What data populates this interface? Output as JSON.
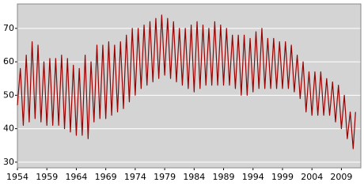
{
  "chart_data": {
    "type": "line",
    "color": "#990000",
    "background": "#d4d4d4",
    "grid": true,
    "xlim": [
      1954,
      2012.3
    ],
    "ylim": [
      28.3,
      77.3
    ],
    "xticks": [
      1954,
      1959,
      1964,
      1969,
      1974,
      1979,
      1984,
      1989,
      1994,
      1999,
      2004,
      2009
    ],
    "yticks": [
      30,
      40,
      50,
      60,
      70
    ],
    "x": [
      1954,
      1954.5,
      1955,
      1955.5,
      1956,
      1956.5,
      1957,
      1957.5,
      1958,
      1958.5,
      1959,
      1959.5,
      1960,
      1960.5,
      1961,
      1961.5,
      1962,
      1962.5,
      1963,
      1963.5,
      1964,
      1964.5,
      1965,
      1965.5,
      1966,
      1966.5,
      1967,
      1967.5,
      1968,
      1968.5,
      1969,
      1969.5,
      1970,
      1970.5,
      1971,
      1971.5,
      1972,
      1972.5,
      1973,
      1973.5,
      1974,
      1974.5,
      1975,
      1975.5,
      1976,
      1976.5,
      1977,
      1977.5,
      1978,
      1978.5,
      1979,
      1979.5,
      1980,
      1980.5,
      1981,
      1981.5,
      1982,
      1982.5,
      1983,
      1983.5,
      1984,
      1984.5,
      1985,
      1985.5,
      1986,
      1986.5,
      1987,
      1987.5,
      1988,
      1988.5,
      1989,
      1989.5,
      1990,
      1990.5,
      1991,
      1991.5,
      1992,
      1992.5,
      1993,
      1993.5,
      1994,
      1994.5,
      1995,
      1995.5,
      1996,
      1996.5,
      1997,
      1997.5,
      1998,
      1998.5,
      1999,
      1999.5,
      2000,
      2000.5,
      2001,
      2001.5,
      2002,
      2002.5,
      2003,
      2003.5,
      2004,
      2004.5,
      2005,
      2005.5,
      2006,
      2006.5,
      2007,
      2007.5,
      2008,
      2008.5,
      2009,
      2009.5,
      2010,
      2010.5,
      2011,
      2011.4
    ],
    "values": [
      47,
      58,
      41,
      62,
      42,
      66,
      43,
      65,
      42,
      60,
      41,
      61,
      41,
      61,
      41,
      62,
      40,
      61,
      39,
      59,
      38,
      58,
      38,
      62,
      37,
      60,
      42,
      65,
      43,
      65,
      43,
      66,
      44,
      65,
      45,
      66,
      46,
      68,
      48,
      70,
      50,
      70,
      52,
      71,
      53,
      72,
      54,
      73,
      55,
      74,
      56,
      73,
      55,
      72,
      54,
      70,
      53,
      70,
      52,
      71,
      51,
      72,
      52,
      71,
      53,
      70,
      53,
      72,
      53,
      71,
      53,
      70,
      53,
      68,
      52,
      68,
      50,
      68,
      50,
      67,
      51,
      69,
      52,
      70,
      52,
      67,
      52,
      67,
      52,
      66,
      52,
      66,
      52,
      65,
      51,
      62,
      49,
      60,
      45,
      57,
      44,
      57,
      44,
      57,
      44,
      55,
      44,
      54,
      42,
      53,
      40,
      50,
      37,
      45,
      34,
      45
    ]
  }
}
